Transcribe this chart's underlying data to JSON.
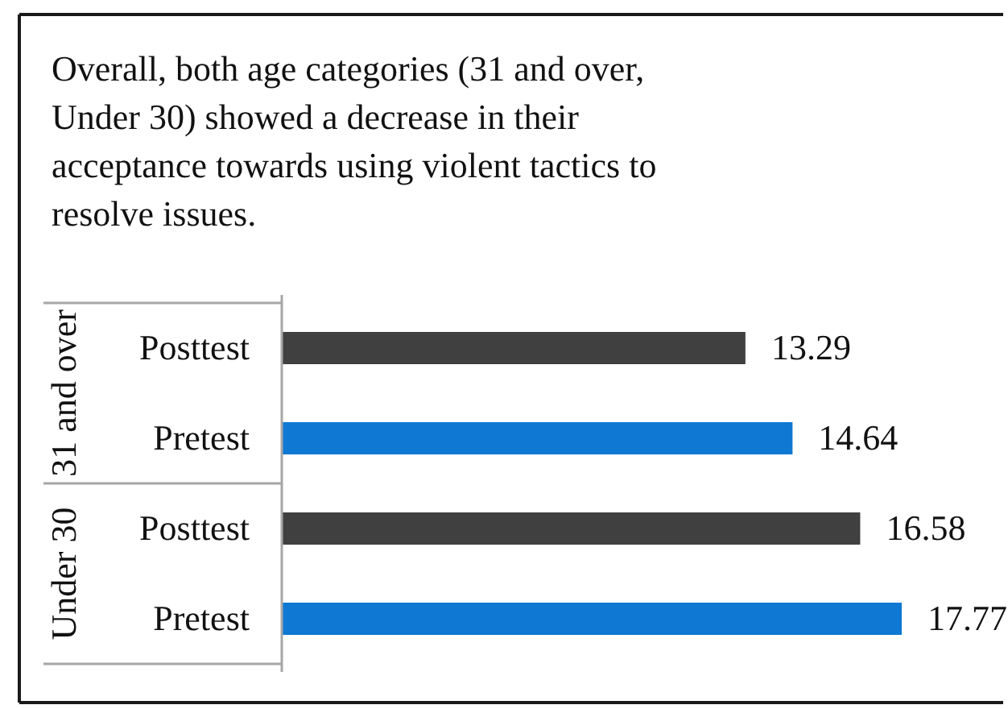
{
  "chart_data": {
    "type": "bar",
    "orientation": "horizontal",
    "title": "Overall, both age categories (31 and over, Under 30) showed a decrease in their acceptance towards using violent tactics to resolve issues.",
    "categories": [
      "31 and over",
      "Under 30"
    ],
    "series": [
      {
        "name": "Posttest",
        "color": "#404040",
        "values": [
          13.29,
          16.58
        ]
      },
      {
        "name": "Pretest",
        "color": "#0f78d2",
        "values": [
          14.64,
          17.77
        ]
      }
    ],
    "data_labels": true
  }
}
